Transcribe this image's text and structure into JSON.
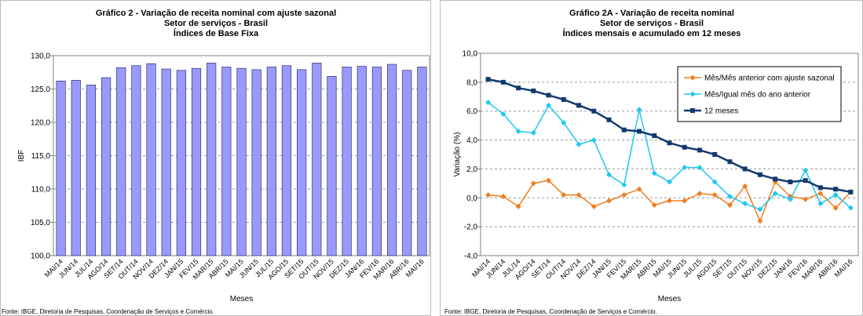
{
  "chart_data": [
    {
      "type": "bar",
      "title": "Gráfico 2 - Variação de receita nominal com ajuste sazonal",
      "subtitle": [
        "Setor de serviços - Brasil",
        "Índices de Base Fixa"
      ],
      "ylabel": "IBF",
      "xlabel": "Meses",
      "source": "Fonte: IBGE, Diretoria de Pesquisas, Coordenação de Serviços e Comércio.",
      "categories": [
        "MAI/14",
        "JUN/14",
        "JUL/14",
        "AGO/14",
        "SET/14",
        "OUT/14",
        "NOV/14",
        "DEZ/14",
        "JAN/15",
        "FEV/15",
        "MAR/15",
        "ABR/15",
        "MAI/15",
        "JUN/15",
        "JUL/15",
        "AGO/15",
        "SET/15",
        "OUT/15",
        "NOV/15",
        "DEZ/15",
        "JAN/16",
        "FEV/16",
        "MAR/16",
        "ABR/16",
        "MAI/16"
      ],
      "values": [
        126.2,
        126.3,
        125.6,
        126.7,
        128.2,
        128.5,
        128.8,
        128.0,
        127.8,
        128.1,
        128.9,
        128.3,
        128.1,
        127.9,
        128.3,
        128.5,
        127.9,
        128.9,
        126.9,
        128.3,
        128.4,
        128.3,
        128.7,
        127.8,
        128.3
      ],
      "color": "#9999ff",
      "grid": true,
      "ylim": [
        100,
        130
      ],
      "yticks": [
        {
          "value": 100,
          "label": "100,0"
        },
        {
          "value": 105,
          "label": "105,0"
        },
        {
          "value": 110,
          "label": "110,0"
        },
        {
          "value": 115,
          "label": "115,0"
        },
        {
          "value": 120,
          "label": "120,0"
        },
        {
          "value": 125,
          "label": "125,0"
        },
        {
          "value": 130,
          "label": "130,0"
        }
      ]
    },
    {
      "type": "line",
      "title": "Gráfico 2A - Variação de receita nominal",
      "subtitle": [
        "Setor de serviços - Brasil",
        "Índices mensais e acumulado em 12 meses"
      ],
      "ylabel": "Variação (%)",
      "xlabel": "Meses",
      "source": "Fonte: IBGE, Diretoria de Pesquisas, Coordenação de Serviços e Comércio.",
      "categories": [
        "MAI/14",
        "JUN/14",
        "JUL/14",
        "AGO/14",
        "SET/14",
        "OUT/14",
        "NOV/14",
        "DEZ/14",
        "JAN/15",
        "FEV/15",
        "MAR/15",
        "ABR/15",
        "MAI/15",
        "JUN/15",
        "JUL/15",
        "AGO/15",
        "SET/15",
        "OUT/15",
        "NOV/15",
        "DEZ/15",
        "JAN/16",
        "FEV/16",
        "MAR/16",
        "ABR/16",
        "MAI/16"
      ],
      "series": [
        {
          "name": "Mês/Mês anterior com ajuste sazonal",
          "color": "#f07d1e",
          "marker": "diamond",
          "values": [
            0.2,
            0.1,
            -0.6,
            1.0,
            1.2,
            0.2,
            0.2,
            -0.6,
            -0.2,
            0.2,
            0.6,
            -0.5,
            -0.2,
            -0.2,
            0.3,
            0.2,
            -0.5,
            0.8,
            -1.6,
            1.1,
            0.1,
            -0.1,
            0.3,
            -0.7,
            0.4
          ]
        },
        {
          "name": "Mês/Igual mês do ano anterior",
          "color": "#1ec8f0",
          "marker": "diamond",
          "values": [
            6.6,
            5.8,
            4.6,
            4.5,
            6.4,
            5.2,
            3.7,
            4.0,
            1.6,
            0.9,
            6.1,
            1.7,
            1.1,
            2.1,
            2.1,
            1.1,
            0.1,
            -0.4,
            -0.8,
            0.3,
            -0.1,
            1.9,
            -0.4,
            0.2,
            -0.7
          ]
        },
        {
          "name": "12 meses",
          "color": "#123a6e",
          "marker": "square",
          "values": [
            8.2,
            8.0,
            7.6,
            7.4,
            7.1,
            6.8,
            6.4,
            6.0,
            5.4,
            4.7,
            4.6,
            4.3,
            3.8,
            3.5,
            3.3,
            3.0,
            2.5,
            2.0,
            1.6,
            1.3,
            1.1,
            1.2,
            0.7,
            0.6,
            0.4
          ]
        }
      ],
      "grid": true,
      "legend": "upper right",
      "ylim": [
        -4,
        10
      ],
      "yticks": [
        {
          "value": -4,
          "label": "-4,0"
        },
        {
          "value": -2,
          "label": "-2,0"
        },
        {
          "value": 0,
          "label": "0,0"
        },
        {
          "value": 2,
          "label": "2,0"
        },
        {
          "value": 4,
          "label": "4,0"
        },
        {
          "value": 6,
          "label": "6,0"
        },
        {
          "value": 8,
          "label": "8,0"
        },
        {
          "value": 10,
          "label": "10,0"
        }
      ]
    }
  ]
}
